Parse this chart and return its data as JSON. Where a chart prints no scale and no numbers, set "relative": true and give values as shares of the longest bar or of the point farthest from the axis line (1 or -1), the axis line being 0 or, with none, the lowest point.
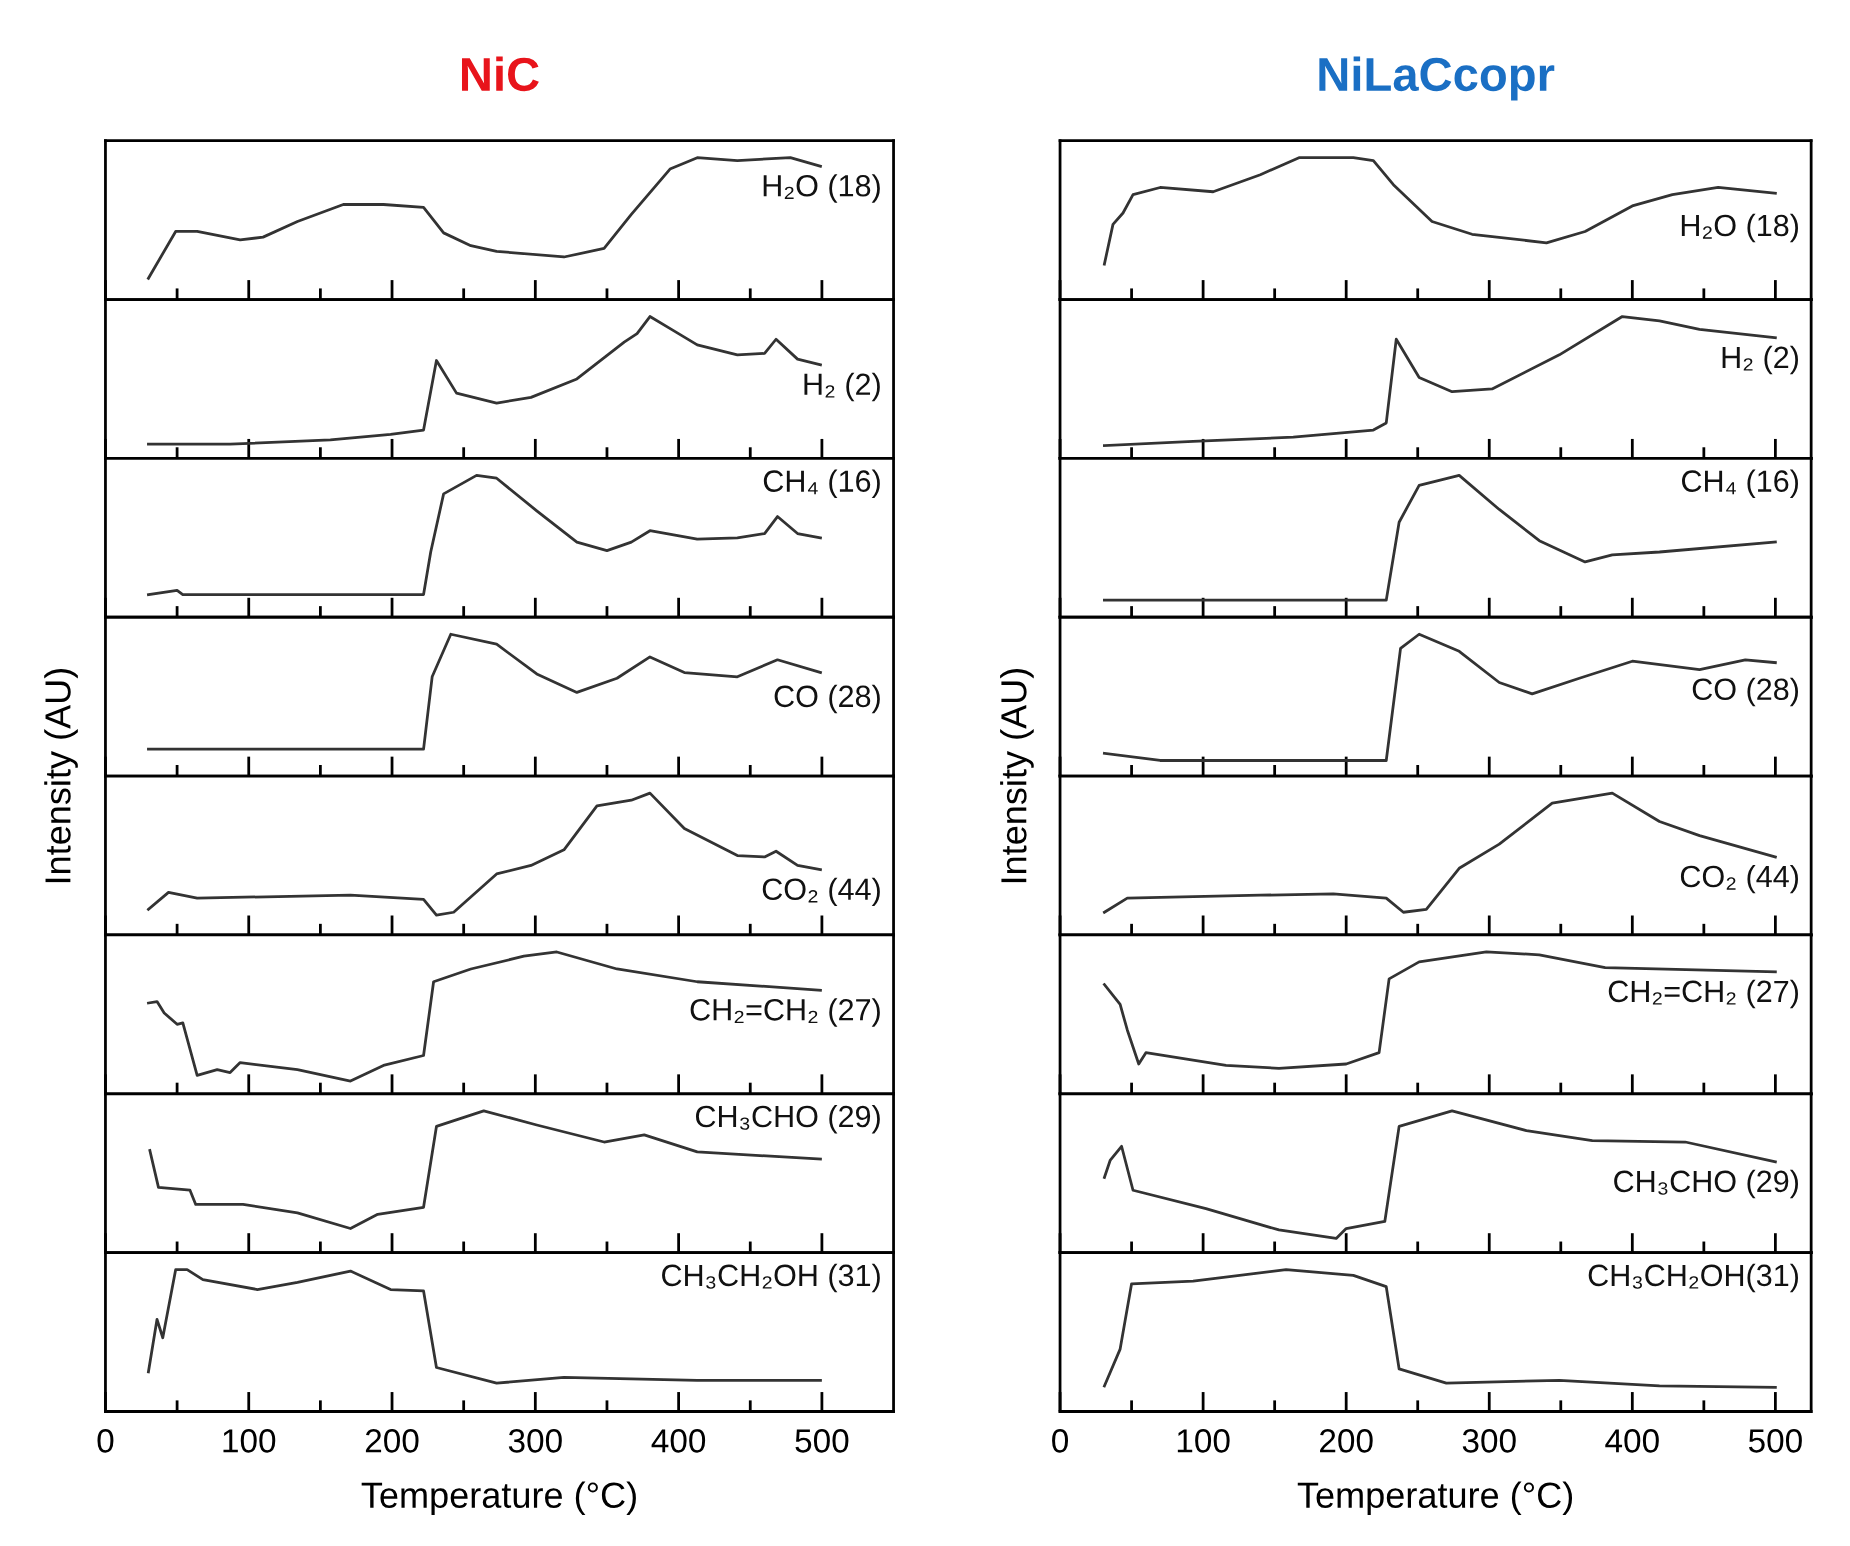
{
  "chart_data": [
    {
      "type": "line",
      "title": "NiC",
      "relative": true,
      "xlim": [
        0,
        550
      ],
      "xticks": [
        0,
        {
          "value": 50,
          "label": null
        },
        100,
        {
          "value": 150,
          "label": null
        },
        200,
        {
          "value": 250,
          "label": null
        },
        300,
        {
          "value": 350,
          "label": null
        },
        400,
        {
          "value": 450,
          "label": null
        },
        500
      ],
      "tick_labels": false,
      "grid": false,
      "series": [
        {
          "name": "H₂O (18)",
          "color": "#333333",
          "x": [
            30,
            49,
            64,
            94,
            110,
            134,
            166,
            194,
            222,
            236,
            255,
            273,
            320,
            348,
            367,
            394,
            413,
            441,
            478,
            499
          ],
          "values": [
            0.15,
            0.48,
            0.48,
            0.42,
            0.44,
            0.55,
            0.67,
            0.67,
            0.65,
            0.47,
            0.38,
            0.34,
            0.3,
            0.36,
            0.6,
            0.92,
            1.0,
            0.98,
            1.0,
            0.94
          ]
        }
      ]
    },
    {
      "type": "line",
      "relative": true,
      "xlim": [
        0,
        550
      ],
      "xticks": [
        0,
        {
          "value": 50,
          "label": null
        },
        100,
        {
          "value": 150,
          "label": null
        },
        200,
        {
          "value": 250,
          "label": null
        },
        300,
        {
          "value": 350,
          "label": null
        },
        400,
        {
          "value": 450,
          "label": null
        },
        500
      ],
      "tick_labels": false,
      "grid": false,
      "series": [
        {
          "name": "H₂ (2)",
          "color": "#333333",
          "x": [
            30,
            87,
            157,
            199,
            222,
            231,
            245,
            273,
            297,
            329,
            362,
            371,
            380,
            395,
            413,
            441,
            460,
            468,
            483,
            499
          ],
          "values": [
            0.1,
            0.1,
            0.13,
            0.17,
            0.2,
            0.69,
            0.46,
            0.39,
            0.43,
            0.56,
            0.82,
            0.88,
            1.0,
            0.91,
            0.8,
            0.73,
            0.74,
            0.84,
            0.7,
            0.66
          ]
        }
      ]
    },
    {
      "type": "line",
      "relative": true,
      "xlim": [
        0,
        550
      ],
      "xticks": [
        0,
        {
          "value": 50,
          "label": null
        },
        100,
        {
          "value": 150,
          "label": null
        },
        200,
        {
          "value": 250,
          "label": null
        },
        300,
        {
          "value": 350,
          "label": null
        },
        400,
        {
          "value": 450,
          "label": null
        },
        500
      ],
      "tick_labels": false,
      "grid": false,
      "series": [
        {
          "name": "CH₄ (16)",
          "color": "#333333",
          "x": [
            30,
            50,
            54,
            222,
            227,
            236,
            259,
            273,
            301,
            329,
            350,
            367,
            380,
            413,
            441,
            460,
            469,
            483,
            499
          ],
          "values": [
            0.16,
            0.19,
            0.16,
            0.16,
            0.46,
            0.87,
            1.0,
            0.98,
            0.75,
            0.53,
            0.47,
            0.53,
            0.61,
            0.55,
            0.56,
            0.59,
            0.71,
            0.59,
            0.56
          ]
        }
      ]
    },
    {
      "type": "line",
      "ylabel": "Intensity (AU)",
      "relative": true,
      "xlim": [
        0,
        550
      ],
      "xticks": [
        0,
        {
          "value": 50,
          "label": null
        },
        100,
        {
          "value": 150,
          "label": null
        },
        200,
        {
          "value": 250,
          "label": null
        },
        300,
        {
          "value": 350,
          "label": null
        },
        400,
        {
          "value": 450,
          "label": null
        },
        500
      ],
      "tick_labels": false,
      "grid": false,
      "series": [
        {
          "name": "CO (28)",
          "color": "#333333",
          "x": [
            30,
            100,
            222,
            228,
            241,
            273,
            301,
            329,
            357,
            380,
            404,
            441,
            469,
            499
          ],
          "values": [
            0.19,
            0.19,
            0.19,
            0.7,
            1.0,
            0.93,
            0.72,
            0.59,
            0.69,
            0.84,
            0.73,
            0.7,
            0.82,
            0.73
          ]
        }
      ]
    },
    {
      "type": "line",
      "relative": true,
      "xlim": [
        0,
        550
      ],
      "xticks": [
        0,
        {
          "value": 50,
          "label": null
        },
        100,
        {
          "value": 150,
          "label": null
        },
        200,
        {
          "value": 250,
          "label": null
        },
        300,
        {
          "value": 350,
          "label": null
        },
        400,
        {
          "value": 450,
          "label": null
        },
        500
      ],
      "tick_labels": false,
      "grid": false,
      "series": [
        {
          "name": "CO₂ (44)",
          "color": "#333333",
          "x": [
            30,
            44,
            64,
            171,
            222,
            231,
            243,
            273,
            297,
            320,
            343,
            367,
            380,
            404,
            441,
            460,
            468,
            483,
            499
          ],
          "values": [
            0.18,
            0.3,
            0.26,
            0.28,
            0.25,
            0.14,
            0.16,
            0.43,
            0.49,
            0.6,
            0.91,
            0.95,
            1.0,
            0.75,
            0.56,
            0.55,
            0.59,
            0.49,
            0.46
          ]
        }
      ]
    },
    {
      "type": "line",
      "relative": true,
      "xlim": [
        0,
        550
      ],
      "xticks": [
        0,
        {
          "value": 50,
          "label": null
        },
        100,
        {
          "value": 150,
          "label": null
        },
        200,
        {
          "value": 250,
          "label": null
        },
        300,
        {
          "value": 350,
          "label": null
        },
        400,
        {
          "value": 450,
          "label": null
        },
        500
      ],
      "tick_labels": false,
      "grid": false,
      "series": [
        {
          "name": "CH₂=CH₂ (27)",
          "color": "#333333",
          "x": [
            30,
            36,
            41,
            50,
            54,
            64,
            78,
            87,
            94,
            134,
            171,
            194,
            222,
            229,
            255,
            292,
            315,
            357,
            413,
            499
          ],
          "values": [
            0.64,
            0.65,
            0.57,
            0.49,
            0.5,
            0.13,
            0.17,
            0.15,
            0.22,
            0.17,
            0.09,
            0.2,
            0.27,
            0.79,
            0.88,
            0.97,
            1.0,
            0.88,
            0.79,
            0.73
          ]
        }
      ]
    },
    {
      "type": "line",
      "relative": true,
      "xlim": [
        0,
        550
      ],
      "xticks": [
        0,
        {
          "value": 50,
          "label": null
        },
        100,
        {
          "value": 150,
          "label": null
        },
        200,
        {
          "value": 250,
          "label": null
        },
        300,
        {
          "value": 350,
          "label": null
        },
        400,
        {
          "value": 450,
          "label": null
        },
        500
      ],
      "tick_labels": false,
      "grid": false,
      "series": [
        {
          "name": "CH₃CHO (29)",
          "color": "#333333",
          "x": [
            31,
            37,
            59,
            63,
            96,
            134,
            171,
            190,
            222,
            231,
            264,
            301,
            348,
            376,
            413,
            499
          ],
          "values": [
            0.72,
            0.46,
            0.44,
            0.34,
            0.34,
            0.28,
            0.17,
            0.27,
            0.32,
            0.89,
            1.0,
            0.9,
            0.78,
            0.83,
            0.71,
            0.66
          ]
        }
      ]
    },
    {
      "type": "line",
      "xlabel": "Temperature (°C)",
      "relative": true,
      "xlim": [
        0,
        550
      ],
      "xticks": [
        0,
        {
          "value": 50,
          "label": null
        },
        100,
        {
          "value": 150,
          "label": null
        },
        200,
        {
          "value": 250,
          "label": null
        },
        300,
        {
          "value": 350,
          "label": null
        },
        400,
        {
          "value": 450,
          "label": null
        },
        500
      ],
      "grid": false,
      "series": [
        {
          "name": "CH₃CH₂OH (31)",
          "color": "#333333",
          "x": [
            30,
            36,
            40,
            49,
            57,
            68,
            106,
            134,
            171,
            199,
            222,
            231,
            273,
            320,
            413,
            499
          ],
          "values": [
            0.28,
            0.65,
            0.52,
            1.0,
            1.0,
            0.93,
            0.86,
            0.91,
            0.99,
            0.86,
            0.85,
            0.31,
            0.2,
            0.24,
            0.22,
            0.22
          ]
        }
      ]
    },
    {
      "type": "line",
      "title": "NiLaCcopr",
      "relative": true,
      "xlim": [
        0,
        525
      ],
      "xticks": [
        0,
        {
          "value": 50,
          "label": null
        },
        100,
        {
          "value": 150,
          "label": null
        },
        200,
        {
          "value": 250,
          "label": null
        },
        300,
        {
          "value": 350,
          "label": null
        },
        400,
        {
          "value": 450,
          "label": null
        },
        500
      ],
      "tick_labels": false,
      "grid": false,
      "series": [
        {
          "name": "H₂O (18)",
          "color": "#333333",
          "x": [
            31,
            37,
            44,
            51,
            70,
            107,
            140,
            167,
            205,
            219,
            233,
            260,
            288,
            340,
            367,
            400,
            428,
            460,
            500
          ],
          "values": [
            0.25,
            0.53,
            0.61,
            0.74,
            0.79,
            0.76,
            0.88,
            1.0,
            1.0,
            0.98,
            0.81,
            0.55,
            0.46,
            0.4,
            0.48,
            0.66,
            0.74,
            0.79,
            0.75
          ]
        }
      ]
    },
    {
      "type": "line",
      "relative": true,
      "xlim": [
        0,
        525
      ],
      "xticks": [
        0,
        {
          "value": 50,
          "label": null
        },
        100,
        {
          "value": 150,
          "label": null
        },
        200,
        {
          "value": 250,
          "label": null
        },
        300,
        {
          "value": 350,
          "label": null
        },
        400,
        {
          "value": 450,
          "label": null
        },
        500
      ],
      "tick_labels": false,
      "grid": false,
      "series": [
        {
          "name": "H₂ (2)",
          "color": "#333333",
          "x": [
            31,
            93,
            163,
            219,
            228,
            235,
            251,
            274,
            302,
            349,
            393,
            419,
            447,
            500
          ],
          "values": [
            0.09,
            0.12,
            0.15,
            0.2,
            0.25,
            0.84,
            0.57,
            0.47,
            0.49,
            0.73,
            1.0,
            0.97,
            0.91,
            0.85
          ]
        }
      ]
    },
    {
      "type": "line",
      "relative": true,
      "xlim": [
        0,
        525
      ],
      "xticks": [
        0,
        {
          "value": 50,
          "label": null
        },
        100,
        {
          "value": 150,
          "label": null
        },
        200,
        {
          "value": 250,
          "label": null
        },
        300,
        {
          "value": 350,
          "label": null
        },
        400,
        {
          "value": 450,
          "label": null
        },
        500
      ],
      "tick_labels": false,
      "grid": false,
      "series": [
        {
          "name": "CH₄ (16)",
          "color": "#333333",
          "x": [
            31,
            228,
            237,
            251,
            279,
            307,
            335,
            367,
            386,
            419,
            500
          ],
          "values": [
            0.12,
            0.12,
            0.67,
            0.93,
            1.0,
            0.76,
            0.54,
            0.39,
            0.44,
            0.46,
            0.53
          ]
        }
      ]
    },
    {
      "type": "line",
      "ylabel": "Intensity (AU)",
      "relative": true,
      "xlim": [
        0,
        525
      ],
      "xticks": [
        0,
        {
          "value": 50,
          "label": null
        },
        100,
        {
          "value": 150,
          "label": null
        },
        200,
        {
          "value": 250,
          "label": null
        },
        300,
        {
          "value": 350,
          "label": null
        },
        400,
        {
          "value": 450,
          "label": null
        },
        500
      ],
      "tick_labels": false,
      "grid": false,
      "series": [
        {
          "name": "CO (28)",
          "color": "#333333",
          "x": [
            31,
            70,
            228,
            238,
            251,
            279,
            307,
            330,
            363,
            400,
            447,
            479,
            500
          ],
          "values": [
            0.16,
            0.11,
            0.11,
            0.9,
            1.0,
            0.88,
            0.66,
            0.58,
            0.69,
            0.81,
            0.75,
            0.82,
            0.8
          ]
        }
      ]
    },
    {
      "type": "line",
      "relative": true,
      "xlim": [
        0,
        525
      ],
      "xticks": [
        0,
        {
          "value": 50,
          "label": null
        },
        100,
        {
          "value": 150,
          "label": null
        },
        200,
        {
          "value": 250,
          "label": null
        },
        300,
        {
          "value": 350,
          "label": null
        },
        400,
        {
          "value": 450,
          "label": null
        },
        500
      ],
      "tick_labels": false,
      "grid": false,
      "series": [
        {
          "name": "CO₂ (44)",
          "color": "#333333",
          "x": [
            31,
            47,
            140,
            191,
            228,
            240,
            256,
            279,
            307,
            344,
            386,
            419,
            447,
            500
          ],
          "values": [
            0.16,
            0.26,
            0.28,
            0.29,
            0.26,
            0.16,
            0.18,
            0.47,
            0.64,
            0.93,
            1.0,
            0.8,
            0.7,
            0.55
          ]
        }
      ]
    },
    {
      "type": "line",
      "relative": true,
      "xlim": [
        0,
        525
      ],
      "xticks": [
        0,
        {
          "value": 50,
          "label": null
        },
        100,
        {
          "value": 150,
          "label": null
        },
        200,
        {
          "value": 250,
          "label": null
        },
        300,
        {
          "value": 350,
          "label": null
        },
        400,
        {
          "value": 450,
          "label": null
        },
        500
      ],
      "tick_labels": false,
      "grid": false,
      "series": [
        {
          "name": "CH₂=CH₂ (27)",
          "color": "#333333",
          "x": [
            31,
            42,
            47,
            55,
            60,
            116,
            153,
            200,
            223,
            230,
            251,
            298,
            335,
            381,
            500
          ],
          "values": [
            0.77,
            0.63,
            0.45,
            0.21,
            0.29,
            0.2,
            0.18,
            0.21,
            0.29,
            0.81,
            0.93,
            1.0,
            0.98,
            0.89,
            0.86
          ]
        }
      ]
    },
    {
      "type": "line",
      "relative": true,
      "xlim": [
        0,
        525
      ],
      "xticks": [
        0,
        {
          "value": 50,
          "label": null
        },
        100,
        {
          "value": 150,
          "label": null
        },
        200,
        {
          "value": 250,
          "label": null
        },
        300,
        {
          "value": 350,
          "label": null
        },
        400,
        {
          "value": 450,
          "label": null
        },
        500
      ],
      "tick_labels": false,
      "grid": false,
      "series": [
        {
          "name": "CH₃CHO (29)",
          "color": "#333333",
          "x": [
            31,
            35,
            43,
            51,
            102,
            153,
            193,
            200,
            227,
            237,
            274,
            326,
            372,
            437,
            500
          ],
          "values": [
            0.53,
            0.65,
            0.75,
            0.44,
            0.31,
            0.16,
            0.1,
            0.17,
            0.22,
            0.89,
            1.0,
            0.86,
            0.79,
            0.78,
            0.64
          ]
        }
      ]
    },
    {
      "type": "line",
      "xlabel": "Temperature (°C)",
      "relative": true,
      "xlim": [
        0,
        525
      ],
      "xticks": [
        0,
        {
          "value": 50,
          "label": null
        },
        100,
        {
          "value": 150,
          "label": null
        },
        200,
        {
          "value": 250,
          "label": null
        },
        300,
        {
          "value": 350,
          "label": null
        },
        400,
        {
          "value": 450,
          "label": null
        },
        500
      ],
      "grid": false,
      "series": [
        {
          "name": "CH₃CH₂OH(31)",
          "color": "#333333",
          "x": [
            31,
            42,
            50,
            93,
            158,
            205,
            228,
            237,
            270,
            349,
            419,
            500
          ],
          "values": [
            0.18,
            0.44,
            0.9,
            0.92,
            1.0,
            0.96,
            0.88,
            0.3,
            0.2,
            0.22,
            0.18,
            0.17
          ]
        }
      ]
    }
  ]
}
